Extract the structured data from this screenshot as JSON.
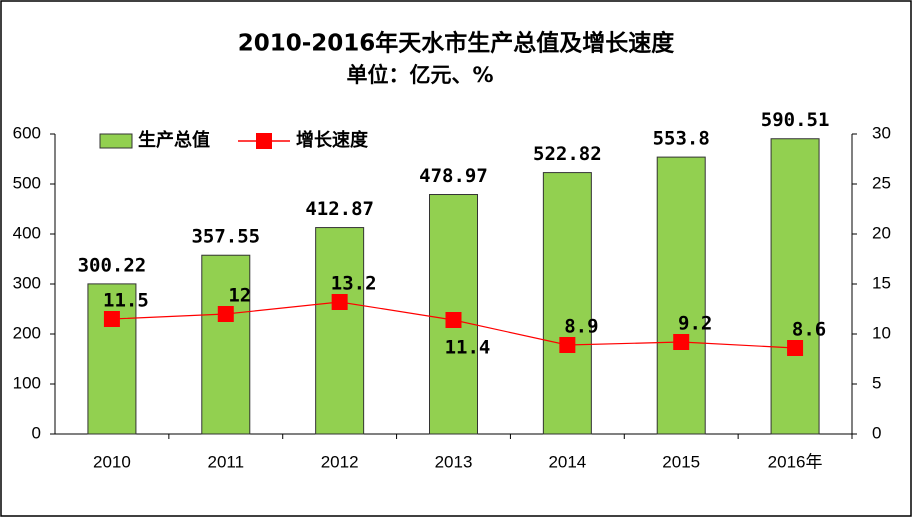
{
  "chart_data": {
    "type": "bar-line",
    "title": "2010-2016年天水市生产总值及增长速度",
    "subtitle": "单位：亿元、%",
    "categories": [
      "2010",
      "2011",
      "2012",
      "2013",
      "2014",
      "2015",
      "2016年"
    ],
    "series": [
      {
        "name": "生产总值",
        "type": "bar",
        "color": "#92d050",
        "values": [
          300.22,
          357.55,
          412.87,
          478.97,
          522.82,
          553.8,
          590.51
        ]
      },
      {
        "name": "增长速度",
        "type": "line",
        "axis": "y2",
        "color": "#ff0000",
        "values": [
          11.5,
          12,
          13.2,
          11.4,
          8.9,
          9.2,
          8.6
        ]
      }
    ],
    "ylim": [
      0,
      600
    ],
    "yticks": [
      0,
      100,
      200,
      300,
      400,
      500,
      600
    ],
    "y2lim": [
      0,
      30
    ],
    "y2ticks": [
      0,
      5,
      10,
      15,
      20,
      25,
      30
    ],
    "legend": "top-left",
    "grid": false
  }
}
